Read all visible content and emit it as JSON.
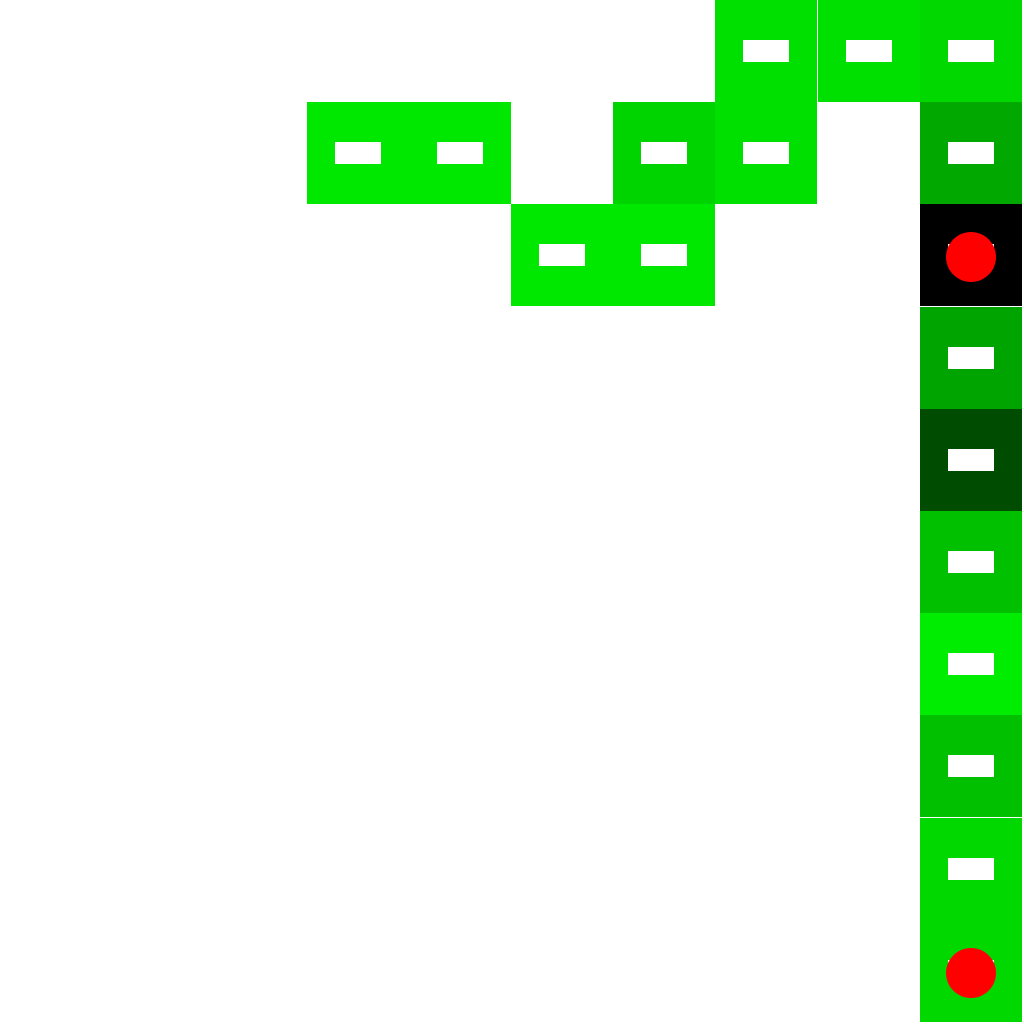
{
  "grid": {
    "cols": 10,
    "rows": 10
  },
  "colors": {
    "background": "#ffffff",
    "slot": "#ffffff",
    "marker": "#ff0000"
  },
  "tiles": [
    {
      "col": 7,
      "row": 0,
      "color": "#00e000",
      "content": "slot"
    },
    {
      "col": 8,
      "row": 0,
      "color": "#00e000",
      "content": "slot"
    },
    {
      "col": 9,
      "row": 0,
      "color": "#00d800",
      "content": "slot"
    },
    {
      "col": 3,
      "row": 1,
      "color": "#00e800",
      "content": "slot"
    },
    {
      "col": 4,
      "row": 1,
      "color": "#00e800",
      "content": "slot"
    },
    {
      "col": 6,
      "row": 1,
      "color": "#00d400",
      "content": "slot"
    },
    {
      "col": 7,
      "row": 1,
      "color": "#00e000",
      "content": "slot"
    },
    {
      "col": 9,
      "row": 1,
      "color": "#00a800",
      "content": "slot"
    },
    {
      "col": 5,
      "row": 2,
      "color": "#00e800",
      "content": "slot"
    },
    {
      "col": 6,
      "row": 2,
      "color": "#00e800",
      "content": "slot"
    },
    {
      "col": 9,
      "row": 2,
      "color": "#000000",
      "content": "marker"
    },
    {
      "col": 9,
      "row": 3,
      "color": "#00a400",
      "content": "slot"
    },
    {
      "col": 9,
      "row": 4,
      "color": "#004c00",
      "content": "slot"
    },
    {
      "col": 9,
      "row": 5,
      "color": "#00c000",
      "content": "slot"
    },
    {
      "col": 9,
      "row": 6,
      "color": "#00ec00",
      "content": "slot"
    },
    {
      "col": 9,
      "row": 7,
      "color": "#00c000",
      "content": "slot"
    },
    {
      "col": 9,
      "row": 8,
      "color": "#00d800",
      "content": "slot"
    },
    {
      "col": 9,
      "row": 9,
      "color": "#00d800",
      "content": "marker"
    }
  ]
}
